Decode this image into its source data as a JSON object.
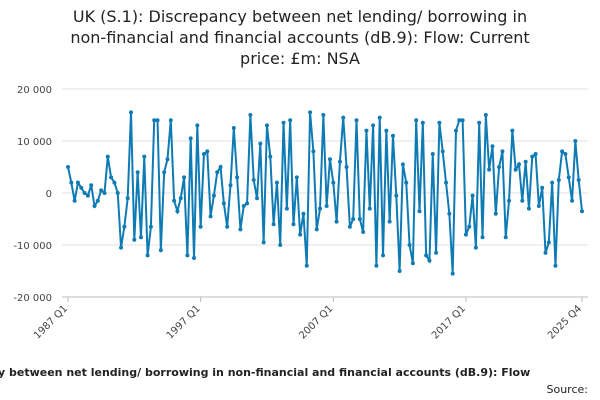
{
  "chart_data": {
    "type": "line",
    "title_lines": [
      "UK (S.1): Discrepancy between net lending/ borrowing in",
      "non-financial and financial accounts (dB.9): Flow: Current",
      "price: £m: NSA"
    ],
    "footer": "y between net lending/ borrowing in non-financial and financial accounts (dB.9): Flow",
    "source": "Source:",
    "categories": [
      "1987 Q1",
      null,
      null,
      null,
      null,
      null,
      null,
      null,
      null,
      null,
      null,
      null,
      null,
      null,
      null,
      null,
      null,
      null,
      null,
      null,
      null,
      null,
      null,
      null,
      null,
      null,
      null,
      null,
      null,
      null,
      null,
      null,
      null,
      null,
      null,
      null,
      null,
      null,
      null,
      null,
      "1997 Q1",
      null,
      null,
      null,
      null,
      null,
      null,
      null,
      null,
      null,
      null,
      null,
      null,
      null,
      null,
      null,
      null,
      null,
      null,
      null,
      null,
      null,
      null,
      null,
      null,
      null,
      null,
      null,
      null,
      null,
      null,
      null,
      null,
      null,
      null,
      null,
      null,
      null,
      null,
      null,
      "2007 Q1",
      null,
      null,
      null,
      null,
      null,
      null,
      null,
      null,
      null,
      null,
      null,
      null,
      null,
      null,
      null,
      null,
      null,
      null,
      null,
      null,
      null,
      null,
      null,
      null,
      null,
      null,
      null,
      null,
      null,
      null,
      null,
      null,
      null,
      null,
      null,
      null,
      null,
      null,
      null,
      "2017 Q1",
      null,
      null,
      null,
      null,
      null,
      null,
      null,
      null,
      null,
      null,
      null,
      null,
      null,
      null,
      null,
      null,
      null,
      null,
      null,
      null,
      null,
      null,
      null,
      null,
      null,
      null,
      null,
      null,
      null,
      null,
      null,
      null,
      null,
      null,
      "2025 Q4"
    ],
    "color": "#0f7bb5",
    "values": [
      5000,
      2000,
      -1500,
      2000,
      1000,
      0,
      -500,
      1500,
      -2500,
      -1500,
      500,
      0,
      7000,
      3000,
      2000,
      0,
      -10500,
      -6500,
      -1000,
      15500,
      -9000,
      4000,
      -8500,
      7000,
      -12000,
      -6500,
      14000,
      14000,
      -11000,
      4000,
      6500,
      14000,
      -1500,
      -3500,
      -1000,
      3000,
      -12000,
      10500,
      -12500,
      13000,
      -6500,
      7500,
      8000,
      -4500,
      -500,
      4000,
      5000,
      -2000,
      -6500,
      1500,
      12500,
      3000,
      -7000,
      -2500,
      -2000,
      15000,
      2500,
      -1000,
      9500,
      -9500,
      13000,
      7000,
      -6000,
      2000,
      -10000,
      13500,
      -3000,
      14000,
      -6000,
      3000,
      -8000,
      -4000,
      -14000,
      15500,
      8000,
      -7000,
      -3000,
      15000,
      -2500,
      6500,
      2000,
      -5500,
      6000,
      14500,
      5000,
      -6500,
      -5000,
      14000,
      -5000,
      -7500,
      12000,
      -3000,
      13000,
      -14000,
      14500,
      -12000,
      12000,
      -5500,
      11000,
      -500,
      -15000,
      5500,
      2000,
      -10000,
      -13500,
      14000,
      -3500,
      13500,
      -12000,
      -13000,
      7500,
      -11500,
      13500,
      8000,
      2000,
      -4000,
      -15500,
      12000,
      14000,
      14000,
      -8000,
      -6500,
      -500,
      -10500,
      13500,
      -8500,
      15000,
      4500,
      9000,
      -4000,
      5000,
      8000,
      -8500,
      -1500,
      12000,
      4500,
      5500,
      -1500,
      6000,
      -3000,
      7000,
      7500,
      -2500,
      1000,
      -11500,
      -9500,
      2000,
      -14000,
      2500,
      8000,
      7500,
      3000,
      -1500,
      10000,
      2500,
      -3500
    ],
    "ylim": [
      -20000,
      20000
    ],
    "yticks": [
      {
        "value": -20000,
        "label": "-20 000"
      },
      {
        "value": -10000,
        "label": "-10 000"
      },
      {
        "value": 0,
        "label": "0"
      },
      {
        "value": 10000,
        "label": "10 000"
      },
      {
        "value": 20000,
        "label": "20 000"
      }
    ],
    "grid": true
  }
}
